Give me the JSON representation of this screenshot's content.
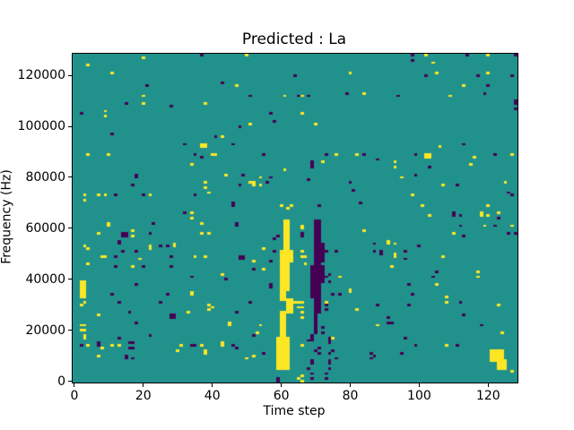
{
  "window": {
    "background": "#ffffff"
  },
  "chart_data": {
    "type": "heatmap",
    "title": "Predicted : La",
    "xlabel": "Time step",
    "ylabel": "Frequency (Hz)",
    "x_ticks": [
      0,
      20,
      40,
      60,
      80,
      100,
      120
    ],
    "y_ticks": [
      0,
      20000,
      40000,
      60000,
      80000,
      100000,
      120000
    ],
    "n_time_steps": 129,
    "n_freq_bins": 129,
    "hz_per_bin": 1000,
    "x_range": [
      -0.5,
      128.5
    ],
    "y_range_hz": [
      -500,
      128500
    ],
    "grid": false,
    "legend_position": "none",
    "colormap": "viridis",
    "colors": {
      "mid_teal": "#21918c",
      "high_yellow": "#fde725",
      "low_purple": "#440154",
      "spine": "#000000",
      "figure_background": "#ffffff"
    },
    "yellow_rects": [
      [
        61,
        62,
        36,
        63
      ],
      [
        60,
        62,
        36,
        46
      ],
      [
        60,
        63,
        47,
        51
      ],
      [
        60,
        61,
        32,
        36
      ],
      [
        62,
        63,
        27,
        32
      ],
      [
        60,
        61,
        17,
        27
      ],
      [
        59,
        62,
        5,
        17
      ],
      [
        121,
        124,
        8,
        12
      ],
      [
        123,
        125,
        5,
        8
      ],
      [
        2,
        3,
        33,
        39
      ]
    ],
    "purple_rects": [
      [
        70,
        71,
        32,
        63
      ],
      [
        69,
        69,
        33,
        45
      ],
      [
        70,
        72,
        47,
        54
      ],
      [
        70,
        71,
        27,
        32
      ],
      [
        70,
        70,
        19,
        27
      ],
      [
        71,
        72,
        39,
        45
      ]
    ],
    "yellow_cells": [
      [
        4,
        124
      ],
      [
        20,
        127
      ],
      [
        11,
        121
      ],
      [
        9,
        104
      ],
      [
        9,
        106
      ],
      [
        20,
        109
      ],
      [
        20,
        112
      ],
      [
        38,
        109
      ],
      [
        4,
        89
      ],
      [
        10,
        89
      ],
      [
        40,
        89
      ],
      [
        41,
        89
      ],
      [
        37,
        92
      ],
      [
        38,
        92
      ],
      [
        37,
        93
      ],
      [
        38,
        93
      ],
      [
        43,
        96
      ],
      [
        50,
        128
      ],
      [
        80,
        121
      ],
      [
        47,
        116
      ],
      [
        61,
        112
      ],
      [
        66,
        112
      ],
      [
        84,
        113
      ],
      [
        66,
        105
      ],
      [
        51,
        101
      ],
      [
        70,
        101
      ],
      [
        76,
        89
      ],
      [
        82,
        89
      ],
      [
        72,
        86
      ],
      [
        102,
        128
      ],
      [
        104,
        125
      ],
      [
        105,
        121
      ],
      [
        120,
        128
      ],
      [
        120,
        121
      ],
      [
        113,
        116
      ],
      [
        109,
        112
      ],
      [
        106,
        92
      ],
      [
        102,
        88
      ],
      [
        102,
        89
      ],
      [
        103,
        88
      ],
      [
        103,
        89
      ],
      [
        93,
        86
      ],
      [
        116,
        88
      ],
      [
        127,
        89
      ],
      [
        125,
        78
      ],
      [
        120,
        69
      ],
      [
        34,
        85
      ],
      [
        38,
        78
      ],
      [
        38,
        76
      ],
      [
        3,
        71
      ],
      [
        3,
        73
      ],
      [
        7,
        73
      ],
      [
        9,
        73
      ],
      [
        22,
        73
      ],
      [
        39,
        74
      ],
      [
        34,
        64
      ],
      [
        34,
        66
      ],
      [
        10,
        61
      ],
      [
        10,
        62
      ],
      [
        37,
        62
      ],
      [
        7,
        58
      ],
      [
        17,
        57
      ],
      [
        17,
        59
      ],
      [
        37,
        58
      ],
      [
        39,
        58
      ],
      [
        3,
        53
      ],
      [
        4,
        52
      ],
      [
        8,
        49
      ],
      [
        9,
        49
      ],
      [
        19,
        48
      ],
      [
        22,
        52
      ],
      [
        22,
        53
      ],
      [
        29,
        53
      ],
      [
        29,
        54
      ],
      [
        35,
        49
      ],
      [
        4,
        46
      ],
      [
        17,
        45
      ],
      [
        38,
        49
      ],
      [
        44,
        81
      ],
      [
        54,
        80
      ],
      [
        61,
        83
      ],
      [
        51,
        78
      ],
      [
        52,
        77
      ],
      [
        52,
        78
      ],
      [
        54,
        77
      ],
      [
        60,
        69
      ],
      [
        62,
        68
      ],
      [
        63,
        69
      ],
      [
        66,
        60
      ],
      [
        66,
        61
      ],
      [
        66,
        49
      ],
      [
        67,
        49
      ],
      [
        67,
        46
      ],
      [
        52,
        47
      ],
      [
        55,
        52
      ],
      [
        55,
        44
      ],
      [
        84,
        59
      ],
      [
        66,
        51
      ],
      [
        93,
        84
      ],
      [
        115,
        85
      ],
      [
        95,
        80
      ],
      [
        107,
        77
      ],
      [
        98,
        73
      ],
      [
        101,
        69
      ],
      [
        103,
        65
      ],
      [
        118,
        65
      ],
      [
        118,
        66
      ],
      [
        120,
        65
      ],
      [
        123,
        66
      ],
      [
        119,
        61
      ],
      [
        127,
        61
      ],
      [
        110,
        58
      ],
      [
        91,
        54
      ],
      [
        91,
        55
      ],
      [
        93,
        54
      ],
      [
        93,
        49
      ],
      [
        93,
        50
      ],
      [
        107,
        49
      ],
      [
        92,
        45
      ],
      [
        117,
        43
      ],
      [
        34,
        34
      ],
      [
        34,
        35
      ],
      [
        39,
        28
      ],
      [
        39,
        30
      ],
      [
        40,
        29
      ],
      [
        7,
        26
      ],
      [
        33,
        27
      ],
      [
        2,
        30
      ],
      [
        3,
        31
      ],
      [
        2,
        20
      ],
      [
        2,
        22
      ],
      [
        3,
        20
      ],
      [
        3,
        22
      ],
      [
        3,
        17
      ],
      [
        3,
        18
      ],
      [
        4,
        14
      ],
      [
        8,
        13
      ],
      [
        11,
        14
      ],
      [
        13,
        14
      ],
      [
        7,
        10
      ],
      [
        31,
        14
      ],
      [
        30,
        12
      ],
      [
        37,
        14
      ],
      [
        38,
        11
      ],
      [
        38,
        12
      ],
      [
        43,
        42
      ],
      [
        77,
        41
      ],
      [
        80,
        35
      ],
      [
        80,
        36
      ],
      [
        73,
        31
      ],
      [
        82,
        28
      ],
      [
        45,
        22
      ],
      [
        45,
        23
      ],
      [
        54,
        22
      ],
      [
        53,
        19
      ],
      [
        50,
        9
      ],
      [
        52,
        10
      ],
      [
        43,
        14
      ],
      [
        43,
        15
      ],
      [
        75,
        17
      ],
      [
        65,
        1
      ],
      [
        66,
        0
      ],
      [
        66,
        2
      ],
      [
        66,
        14
      ],
      [
        63,
        28
      ],
      [
        63,
        30
      ],
      [
        64,
        31
      ],
      [
        65,
        29
      ],
      [
        65,
        31
      ],
      [
        66,
        25
      ],
      [
        66,
        27
      ],
      [
        66,
        29
      ],
      [
        66,
        31
      ],
      [
        117,
        41
      ],
      [
        105,
        38
      ],
      [
        108,
        31
      ],
      [
        108,
        33
      ],
      [
        123,
        30
      ],
      [
        88,
        22
      ],
      [
        124,
        19
      ],
      [
        108,
        14
      ],
      [
        127,
        4
      ]
    ],
    "purple_cells": [
      [
        37,
        128
      ],
      [
        21,
        116
      ],
      [
        43,
        117
      ],
      [
        15,
        109
      ],
      [
        28,
        108
      ],
      [
        2,
        105
      ],
      [
        11,
        97
      ],
      [
        32,
        93
      ],
      [
        41,
        96
      ],
      [
        35,
        89
      ],
      [
        37,
        88
      ],
      [
        64,
        120
      ],
      [
        51,
        112
      ],
      [
        65,
        112
      ],
      [
        68,
        112
      ],
      [
        79,
        113
      ],
      [
        57,
        105
      ],
      [
        58,
        102
      ],
      [
        48,
        100
      ],
      [
        46,
        93
      ],
      [
        55,
        89
      ],
      [
        73,
        89
      ],
      [
        84,
        89
      ],
      [
        69,
        86
      ],
      [
        98,
        126
      ],
      [
        98,
        128
      ],
      [
        114,
        128
      ],
      [
        102,
        120
      ],
      [
        117,
        120
      ],
      [
        127,
        120
      ],
      [
        119,
        113
      ],
      [
        94,
        112
      ],
      [
        128,
        109
      ],
      [
        113,
        93
      ],
      [
        99,
        89
      ],
      [
        88,
        87
      ],
      [
        122,
        89
      ],
      [
        128,
        128
      ],
      [
        120,
        116
      ],
      [
        128,
        110
      ],
      [
        128,
        107
      ],
      [
        126,
        74
      ],
      [
        123,
        64
      ],
      [
        18,
        80
      ],
      [
        18,
        81
      ],
      [
        17,
        77
      ],
      [
        12,
        73
      ],
      [
        20,
        73
      ],
      [
        35,
        73
      ],
      [
        32,
        66
      ],
      [
        23,
        62
      ],
      [
        14,
        57
      ],
      [
        14,
        58
      ],
      [
        15,
        57
      ],
      [
        15,
        58
      ],
      [
        22,
        58
      ],
      [
        13,
        54
      ],
      [
        13,
        55
      ],
      [
        12,
        49
      ],
      [
        14,
        51
      ],
      [
        18,
        51
      ],
      [
        25,
        53
      ],
      [
        27,
        53
      ],
      [
        28,
        49
      ],
      [
        12,
        45
      ],
      [
        20,
        45
      ],
      [
        28,
        45
      ],
      [
        49,
        81
      ],
      [
        57,
        80
      ],
      [
        48,
        77
      ],
      [
        56,
        78
      ],
      [
        68,
        79
      ],
      [
        80,
        78
      ],
      [
        81,
        75
      ],
      [
        46,
        69
      ],
      [
        46,
        70
      ],
      [
        71,
        69
      ],
      [
        83,
        70
      ],
      [
        47,
        61
      ],
      [
        47,
        62
      ],
      [
        66,
        57
      ],
      [
        66,
        58
      ],
      [
        59,
        57
      ],
      [
        58,
        56
      ],
      [
        57,
        47
      ],
      [
        58,
        51
      ],
      [
        73,
        51
      ],
      [
        76,
        51
      ],
      [
        48,
        48
      ],
      [
        48,
        49
      ],
      [
        49,
        48
      ],
      [
        49,
        49
      ],
      [
        52,
        44
      ],
      [
        69,
        84
      ],
      [
        69,
        85
      ],
      [
        72,
        41
      ],
      [
        72,
        43
      ],
      [
        103,
        84
      ],
      [
        99,
        81
      ],
      [
        111,
        77
      ],
      [
        127,
        73
      ],
      [
        110,
        65
      ],
      [
        110,
        66
      ],
      [
        112,
        65
      ],
      [
        112,
        61
      ],
      [
        122,
        61
      ],
      [
        113,
        57
      ],
      [
        126,
        58
      ],
      [
        128,
        58
      ],
      [
        87,
        54
      ],
      [
        89,
        50
      ],
      [
        89,
        51
      ],
      [
        87,
        51
      ],
      [
        96,
        51
      ],
      [
        100,
        53
      ],
      [
        96,
        48
      ],
      [
        105,
        43
      ],
      [
        34,
        41
      ],
      [
        11,
        34
      ],
      [
        13,
        31
      ],
      [
        18,
        38
      ],
      [
        27,
        34
      ],
      [
        25,
        31
      ],
      [
        28,
        25
      ],
      [
        28,
        26
      ],
      [
        29,
        25
      ],
      [
        29,
        26
      ],
      [
        16,
        27
      ],
      [
        18,
        23
      ],
      [
        13,
        17
      ],
      [
        2,
        14
      ],
      [
        7,
        14
      ],
      [
        7,
        15
      ],
      [
        16,
        13
      ],
      [
        16,
        15
      ],
      [
        17,
        13
      ],
      [
        17,
        15
      ],
      [
        15,
        9
      ],
      [
        15,
        10
      ],
      [
        17,
        9
      ],
      [
        22,
        18
      ],
      [
        34,
        14
      ],
      [
        35,
        14
      ],
      [
        44,
        40
      ],
      [
        57,
        37
      ],
      [
        57,
        38
      ],
      [
        73,
        41
      ],
      [
        75,
        34
      ],
      [
        77,
        34
      ],
      [
        51,
        31
      ],
      [
        47,
        27
      ],
      [
        52,
        18
      ],
      [
        55,
        11
      ],
      [
        47,
        13
      ],
      [
        46,
        14
      ],
      [
        69,
        7
      ],
      [
        69,
        8
      ],
      [
        68,
        5
      ],
      [
        73,
        1
      ],
      [
        59,
        0
      ],
      [
        59,
        1
      ],
      [
        74,
        8
      ],
      [
        74,
        11
      ],
      [
        74,
        16
      ],
      [
        76,
        9
      ],
      [
        104,
        41
      ],
      [
        97,
        38
      ],
      [
        98,
        34
      ],
      [
        97,
        30
      ],
      [
        88,
        30
      ],
      [
        112,
        31
      ],
      [
        113,
        26
      ],
      [
        91,
        23
      ],
      [
        91,
        25
      ],
      [
        92,
        23
      ],
      [
        118,
        22
      ],
      [
        96,
        17
      ],
      [
        99,
        14
      ],
      [
        111,
        14
      ],
      [
        95,
        11
      ],
      [
        86,
        9
      ],
      [
        86,
        11
      ],
      [
        87,
        10
      ],
      [
        73,
        28
      ],
      [
        73,
        30
      ],
      [
        74,
        42
      ],
      [
        74,
        39
      ],
      [
        72,
        21
      ],
      [
        72,
        19
      ],
      [
        74,
        17
      ],
      [
        74,
        15
      ],
      [
        75,
        12
      ],
      [
        74,
        7
      ],
      [
        74,
        5
      ],
      [
        73,
        3
      ],
      [
        69,
        16
      ],
      [
        68,
        16
      ],
      [
        69,
        18
      ],
      [
        69,
        17
      ],
      [
        71,
        13
      ],
      [
        70,
        12
      ],
      [
        71,
        11
      ],
      [
        69,
        3
      ],
      [
        69,
        1
      ]
    ]
  }
}
